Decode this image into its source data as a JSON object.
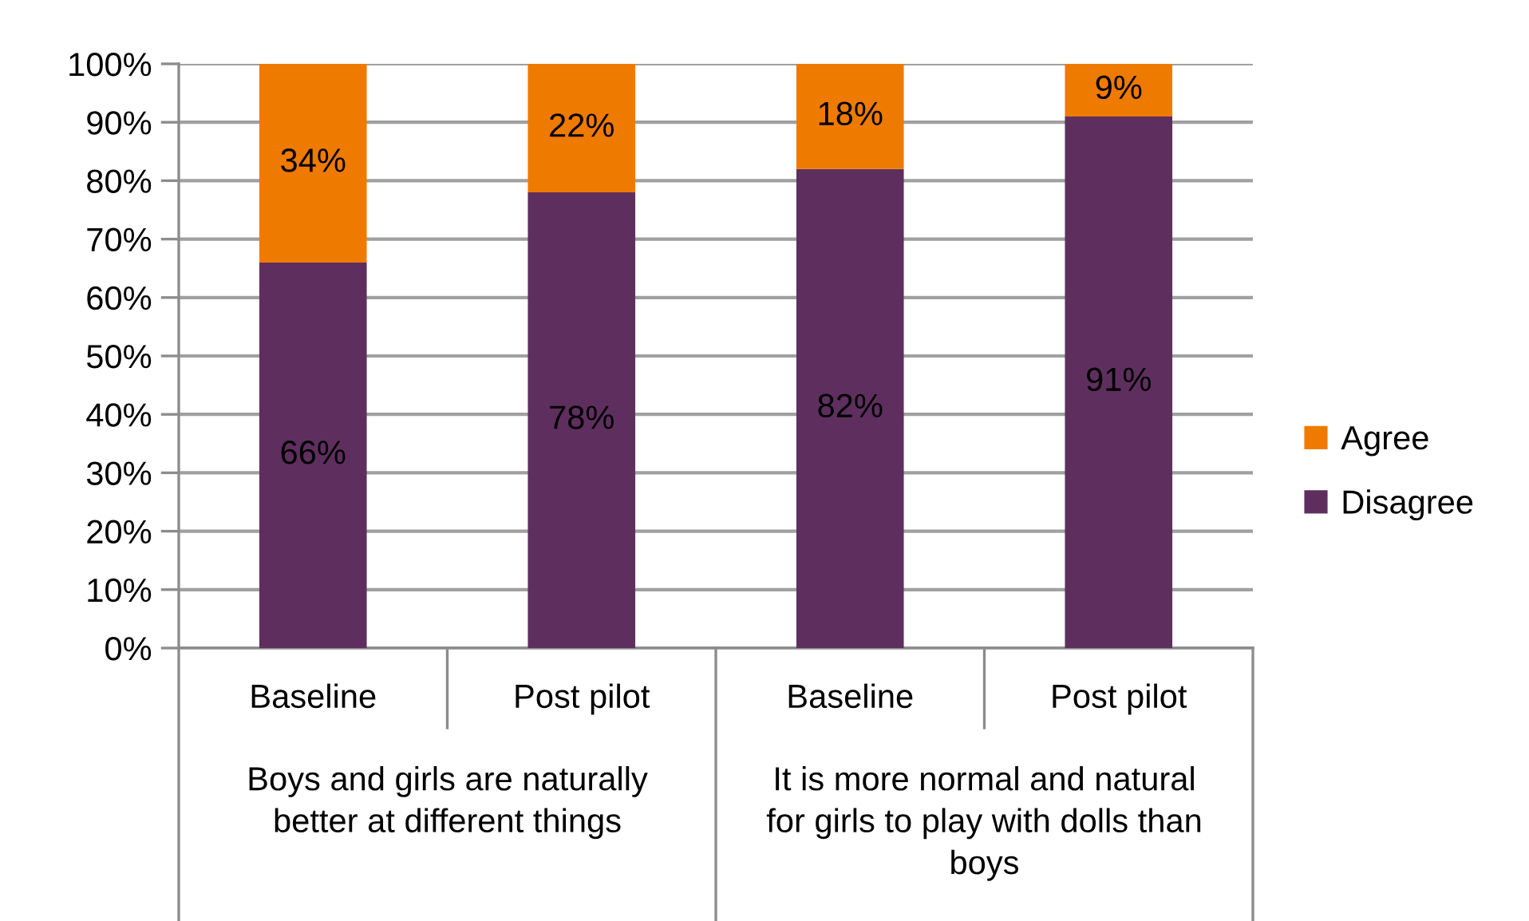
{
  "chart_data": {
    "type": "bar",
    "stacked": true,
    "categories": [
      "Baseline",
      "Post pilot",
      "Baseline",
      "Post pilot"
    ],
    "series": [
      {
        "name": "Disagree",
        "color": "#5e2f5e",
        "values": [
          66,
          78,
          82,
          91
        ],
        "value_labels": [
          "66%",
          "78%",
          "82%",
          "91%"
        ]
      },
      {
        "name": "Agree",
        "color": "#ef7a00",
        "values": [
          34,
          22,
          18,
          9
        ],
        "value_labels": [
          "34%",
          "22%",
          "18%",
          "9%"
        ]
      }
    ],
    "ylim": [
      0,
      100
    ],
    "yticks": [
      {
        "value": 0,
        "label": "0%"
      },
      {
        "value": 10,
        "label": "10%"
      },
      {
        "value": 20,
        "label": "20%"
      },
      {
        "value": 30,
        "label": "30%"
      },
      {
        "value": 40,
        "label": "40%"
      },
      {
        "value": 50,
        "label": "50%"
      },
      {
        "value": 60,
        "label": "60%"
      },
      {
        "value": 70,
        "label": "70%"
      },
      {
        "value": 80,
        "label": "80%"
      },
      {
        "value": 90,
        "label": "90%"
      },
      {
        "value": 100,
        "label": "100%"
      }
    ],
    "grid": "y",
    "legend": "right",
    "annotations": [
      "Boys and girls are naturally\nbetter at different things",
      "It is more normal and natural\nfor girls to play with dolls than\nboys"
    ]
  }
}
